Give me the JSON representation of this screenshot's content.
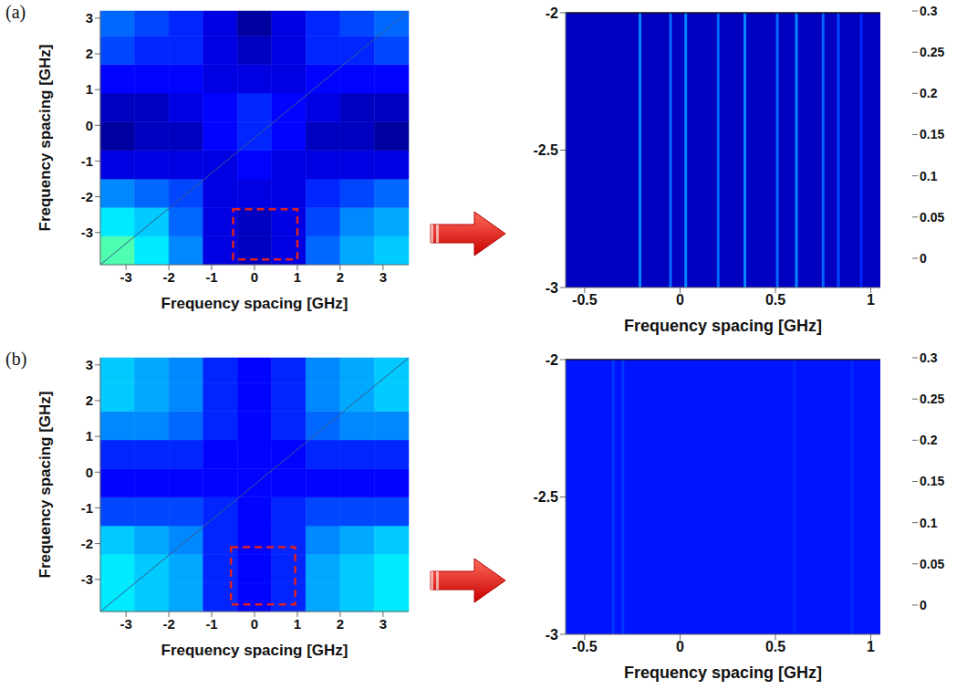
{
  "chart_data": [
    {
      "type": "heatmap",
      "panel": "(a)",
      "xlabel": "Frequency spacing [GHz]",
      "ylabel": "Frequency spacing [GHz]",
      "xlim": [
        -3.6,
        3.6
      ],
      "ylim": [
        -3.9,
        3.2
      ],
      "xticks": [
        -3,
        -2,
        -1,
        0,
        1,
        2,
        3
      ],
      "yticks": [
        -3,
        -2,
        -1,
        0,
        1,
        2,
        3
      ],
      "x_edges": [
        -3.6,
        -2.8,
        -2.0,
        -1.2,
        -0.4,
        0.4,
        1.2,
        2.0,
        2.8,
        3.6
      ],
      "y_edges": [
        -3.9,
        -3.1,
        -2.3,
        -1.5,
        -0.7,
        0.1,
        0.9,
        1.7,
        2.5,
        3.2
      ],
      "cells": [
        [
          0.13,
          0.1,
          0.07,
          0.02,
          0.01,
          0.02,
          0.06,
          0.08,
          0.09
        ],
        [
          0.1,
          0.09,
          0.06,
          0.02,
          0.01,
          0.02,
          0.05,
          0.07,
          0.08
        ],
        [
          0.07,
          0.06,
          0.05,
          0.02,
          0.02,
          0.02,
          0.04,
          0.05,
          0.06
        ],
        [
          0.02,
          0.02,
          0.02,
          0.02,
          0.03,
          0.02,
          0.02,
          0.02,
          0.02
        ],
        [
          0.0,
          0.01,
          0.01,
          0.03,
          0.04,
          0.03,
          0.01,
          0.01,
          0.0
        ],
        [
          0.01,
          0.01,
          0.02,
          0.03,
          0.04,
          0.03,
          0.02,
          0.01,
          0.01
        ],
        [
          0.03,
          0.03,
          0.03,
          0.02,
          0.02,
          0.02,
          0.03,
          0.03,
          0.03
        ],
        [
          0.05,
          0.04,
          0.04,
          0.02,
          0.01,
          0.02,
          0.04,
          0.04,
          0.05
        ],
        [
          0.06,
          0.05,
          0.04,
          0.02,
          0.0,
          0.02,
          0.04,
          0.05,
          0.06
        ]
      ],
      "zoom_box": {
        "x": [
          -0.5,
          1.0
        ],
        "y": [
          -3.75,
          -2.35
        ]
      },
      "colorbar": {
        "range": [
          -0.01,
          0.3
        ],
        "ticks": [
          0,
          0.05,
          0.1,
          0.15,
          0.2,
          0.25,
          0.3
        ]
      }
    },
    {
      "type": "heatmap",
      "xlabel": "Frequency spacing [GHz]",
      "xlim": [
        -0.6,
        1.05
      ],
      "ylim": [
        -3,
        -2
      ],
      "xticks": [
        -0.5,
        0,
        0.5,
        1
      ],
      "yticks": [
        -3,
        -2.5,
        -2
      ],
      "background": 0.01,
      "lines": [
        {
          "x": -0.21,
          "value": 0.07
        },
        {
          "x": -0.05,
          "value": 0.06
        },
        {
          "x": 0.03,
          "value": 0.07
        },
        {
          "x": 0.2,
          "value": 0.06
        },
        {
          "x": 0.34,
          "value": 0.07
        },
        {
          "x": 0.51,
          "value": 0.06
        },
        {
          "x": 0.61,
          "value": 0.07
        },
        {
          "x": 0.75,
          "value": 0.06
        },
        {
          "x": 0.83,
          "value": 0.05
        },
        {
          "x": 0.95,
          "value": 0.04
        }
      ],
      "colorbar": {
        "range": [
          -0.01,
          0.3
        ],
        "ticks": [
          0,
          0.05,
          0.1,
          0.15,
          0.2,
          0.25,
          0.3
        ]
      }
    },
    {
      "type": "heatmap",
      "panel": "(b)",
      "xlabel": "Frequency spacing [GHz]",
      "ylabel": "Frequency spacing [GHz]",
      "xlim": [
        -3.6,
        3.6
      ],
      "ylim": [
        -3.9,
        3.2
      ],
      "xticks": [
        -3,
        -2,
        -1,
        0,
        1,
        2,
        3
      ],
      "yticks": [
        -3,
        -2,
        -1,
        0,
        1,
        2,
        3
      ],
      "x_edges": [
        -3.6,
        -2.8,
        -2.0,
        -1.2,
        -0.4,
        0.4,
        1.2,
        2.0,
        2.8,
        3.6
      ],
      "y_edges": [
        -3.9,
        -3.1,
        -2.3,
        -1.5,
        -0.7,
        0.1,
        0.9,
        1.7,
        2.5,
        3.2
      ],
      "cells": [
        [
          0.1,
          0.09,
          0.08,
          0.04,
          0.03,
          0.04,
          0.08,
          0.09,
          0.1
        ],
        [
          0.1,
          0.09,
          0.08,
          0.04,
          0.03,
          0.04,
          0.08,
          0.09,
          0.1
        ],
        [
          0.09,
          0.08,
          0.07,
          0.04,
          0.03,
          0.04,
          0.07,
          0.08,
          0.09
        ],
        [
          0.05,
          0.05,
          0.05,
          0.04,
          0.03,
          0.04,
          0.05,
          0.05,
          0.05
        ],
        [
          0.03,
          0.03,
          0.03,
          0.03,
          0.03,
          0.03,
          0.03,
          0.03,
          0.03
        ],
        [
          0.04,
          0.04,
          0.04,
          0.03,
          0.03,
          0.03,
          0.04,
          0.04,
          0.04
        ],
        [
          0.07,
          0.07,
          0.06,
          0.04,
          0.03,
          0.04,
          0.06,
          0.07,
          0.07
        ],
        [
          0.09,
          0.08,
          0.07,
          0.04,
          0.03,
          0.04,
          0.07,
          0.08,
          0.09
        ],
        [
          0.09,
          0.08,
          0.07,
          0.04,
          0.03,
          0.04,
          0.07,
          0.08,
          0.09
        ]
      ],
      "zoom_box": {
        "x": [
          -0.55,
          0.95
        ],
        "y": [
          -3.7,
          -2.1
        ]
      },
      "colorbar": {
        "range": [
          -0.01,
          0.3
        ],
        "ticks": [
          0,
          0.05,
          0.1,
          0.15,
          0.2,
          0.25,
          0.3
        ]
      }
    },
    {
      "type": "heatmap",
      "xlabel": "Frequency spacing [GHz]",
      "xlim": [
        -0.6,
        1.05
      ],
      "ylim": [
        -3,
        -2
      ],
      "xticks": [
        -0.5,
        0,
        0.5,
        1
      ],
      "yticks": [
        -3,
        -2.5,
        -2
      ],
      "background": 0.035,
      "lines": [
        {
          "x": -0.35,
          "value": 0.045
        },
        {
          "x": -0.3,
          "value": 0.045
        },
        {
          "x": 0.6,
          "value": 0.04
        },
        {
          "x": 0.9,
          "value": 0.04
        }
      ],
      "colorbar": {
        "range": [
          -0.01,
          0.3
        ],
        "ticks": [
          0,
          0.05,
          0.1,
          0.15,
          0.2,
          0.25,
          0.3
        ]
      }
    }
  ]
}
